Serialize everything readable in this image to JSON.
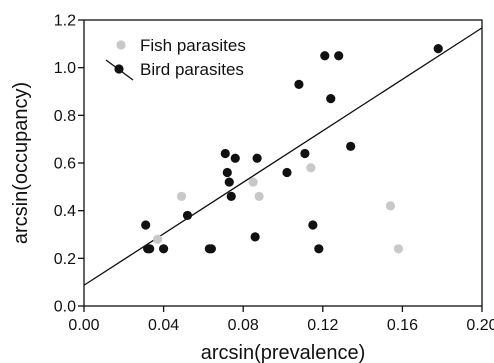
{
  "chart_data": {
    "type": "scatter",
    "xlabel": "arcsin(prevalence)",
    "ylabel": "arcsin(occupancy)",
    "xlim": [
      0,
      0.2
    ],
    "ylim": [
      0,
      1.2
    ],
    "x_ticks": [
      "0.00",
      "0.04",
      "0.08",
      "0.12",
      "0.16",
      "0.20"
    ],
    "y_ticks": [
      "0.0",
      "0.2",
      "0.4",
      "0.6",
      "0.8",
      "1.0",
      "1.2"
    ],
    "grid": false,
    "legend_position": "top-left",
    "series": [
      {
        "name": "Fish parasites",
        "color": "#c8c8c8",
        "points": [
          {
            "x": 0.037,
            "y": 0.28
          },
          {
            "x": 0.049,
            "y": 0.46
          },
          {
            "x": 0.085,
            "y": 0.52
          },
          {
            "x": 0.088,
            "y": 0.46
          },
          {
            "x": 0.114,
            "y": 0.58
          },
          {
            "x": 0.154,
            "y": 0.42
          },
          {
            "x": 0.158,
            "y": 0.24
          }
        ]
      },
      {
        "name": "Bird parasites",
        "color": "#111111",
        "points": [
          {
            "x": 0.031,
            "y": 0.34
          },
          {
            "x": 0.032,
            "y": 0.24
          },
          {
            "x": 0.033,
            "y": 0.24
          },
          {
            "x": 0.04,
            "y": 0.24
          },
          {
            "x": 0.052,
            "y": 0.38
          },
          {
            "x": 0.063,
            "y": 0.24
          },
          {
            "x": 0.064,
            "y": 0.24
          },
          {
            "x": 0.071,
            "y": 0.64
          },
          {
            "x": 0.072,
            "y": 0.56
          },
          {
            "x": 0.073,
            "y": 0.52
          },
          {
            "x": 0.074,
            "y": 0.46
          },
          {
            "x": 0.076,
            "y": 0.62
          },
          {
            "x": 0.086,
            "y": 0.29
          },
          {
            "x": 0.087,
            "y": 0.62
          },
          {
            "x": 0.102,
            "y": 0.56
          },
          {
            "x": 0.108,
            "y": 0.93
          },
          {
            "x": 0.111,
            "y": 0.64
          },
          {
            "x": 0.115,
            "y": 0.34
          },
          {
            "x": 0.118,
            "y": 0.24
          },
          {
            "x": 0.121,
            "y": 1.05
          },
          {
            "x": 0.124,
            "y": 0.87
          },
          {
            "x": 0.128,
            "y": 1.05
          },
          {
            "x": 0.134,
            "y": 0.67
          },
          {
            "x": 0.178,
            "y": 1.08
          }
        ]
      }
    ],
    "fit_line": {
      "series": "Bird parasites",
      "intercept": 0.087,
      "slope": 5.4
    }
  }
}
